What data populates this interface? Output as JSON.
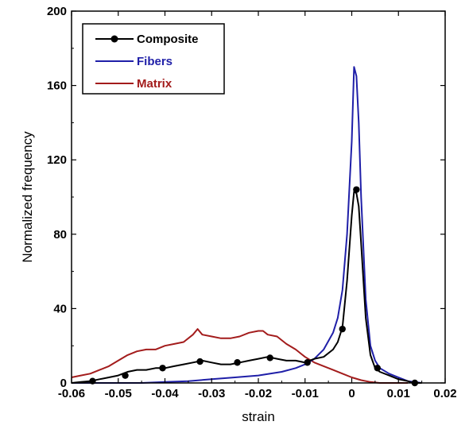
{
  "chart_data": {
    "type": "line",
    "xlabel": "strain",
    "ylabel": "Normalized frequency",
    "xlim": [
      -0.06,
      0.02
    ],
    "ylim": [
      0,
      200
    ],
    "xticks": [
      -0.06,
      -0.05,
      -0.04,
      -0.03,
      -0.02,
      -0.01,
      0,
      0.01,
      0.02
    ],
    "xtick_labels": [
      "-0.06",
      "-0.05",
      "-0.04",
      "-0.03",
      "-0.02",
      "-0.01",
      "0",
      "0.01",
      "0.02"
    ],
    "yticks": [
      0,
      40,
      80,
      120,
      160,
      200
    ],
    "ytick_labels": [
      "0",
      "40",
      "80",
      "120",
      "160",
      "200"
    ],
    "grid": false,
    "legend_position": "top-left",
    "series": [
      {
        "name": "Composite",
        "color": "#000000",
        "marker": "circle",
        "x": [
          -0.06,
          -0.058,
          -0.056,
          -0.054,
          -0.052,
          -0.05,
          -0.048,
          -0.046,
          -0.044,
          -0.042,
          -0.04,
          -0.038,
          -0.036,
          -0.034,
          -0.032,
          -0.03,
          -0.028,
          -0.026,
          -0.024,
          -0.022,
          -0.02,
          -0.018,
          -0.016,
          -0.014,
          -0.012,
          -0.01,
          -0.008,
          -0.006,
          -0.004,
          -0.003,
          -0.002,
          -0.001,
          0,
          0.0005,
          0.001,
          0.0015,
          0.002,
          0.003,
          0.004,
          0.005,
          0.006,
          0.008,
          0.01,
          0.012,
          0.013,
          0.015
        ],
        "y": [
          0,
          0.5,
          1,
          2,
          3,
          4,
          6,
          7,
          7,
          8,
          8,
          9,
          10,
          11,
          12,
          11,
          10,
          10,
          11,
          12,
          13,
          14,
          13,
          12,
          12,
          11,
          13,
          14,
          18,
          22,
          30,
          55,
          90,
          103,
          102,
          95,
          75,
          35,
          15,
          8,
          6,
          4,
          2,
          1,
          0,
          0
        ],
        "marker_x": [
          -0.0555,
          -0.0485,
          -0.0405,
          -0.0325,
          -0.0245,
          -0.0175,
          -0.0095,
          -0.002,
          0.001,
          0.0055,
          0.0135
        ],
        "marker_y": [
          1,
          4,
          8,
          11.5,
          11,
          13.5,
          11,
          29,
          104,
          8,
          0
        ]
      },
      {
        "name": "Fibers",
        "color": "#1f1fa8",
        "x": [
          -0.06,
          -0.055,
          -0.05,
          -0.045,
          -0.04,
          -0.035,
          -0.03,
          -0.025,
          -0.02,
          -0.015,
          -0.012,
          -0.01,
          -0.008,
          -0.006,
          -0.004,
          -0.003,
          -0.002,
          -0.001,
          0,
          0.0005,
          0.001,
          0.0015,
          0.002,
          0.003,
          0.004,
          0.005,
          0.006,
          0.008,
          0.01,
          0.012,
          0.015
        ],
        "y": [
          0,
          0,
          0,
          0,
          0.5,
          1,
          2,
          3,
          4,
          6,
          8,
          10,
          13,
          18,
          27,
          35,
          50,
          80,
          130,
          170,
          165,
          140,
          100,
          45,
          20,
          12,
          8,
          5,
          3,
          1,
          0
        ]
      },
      {
        "name": "Matrix",
        "color": "#a31c1c",
        "x": [
          -0.06,
          -0.058,
          -0.056,
          -0.054,
          -0.052,
          -0.05,
          -0.048,
          -0.046,
          -0.044,
          -0.042,
          -0.04,
          -0.038,
          -0.036,
          -0.034,
          -0.033,
          -0.032,
          -0.03,
          -0.028,
          -0.026,
          -0.024,
          -0.022,
          -0.02,
          -0.019,
          -0.018,
          -0.016,
          -0.014,
          -0.012,
          -0.01,
          -0.008,
          -0.006,
          -0.004,
          -0.002,
          0,
          0.002,
          0.004,
          0.006,
          0.008,
          0.01,
          0.012
        ],
        "y": [
          3,
          4,
          5,
          7,
          9,
          12,
          15,
          17,
          18,
          18,
          20,
          21,
          22,
          26,
          29,
          26,
          25,
          24,
          24,
          25,
          27,
          28,
          28,
          26,
          25,
          21,
          18,
          14,
          11,
          9,
          7,
          5,
          3,
          1.5,
          0.5,
          0,
          0,
          0,
          0
        ]
      }
    ]
  }
}
